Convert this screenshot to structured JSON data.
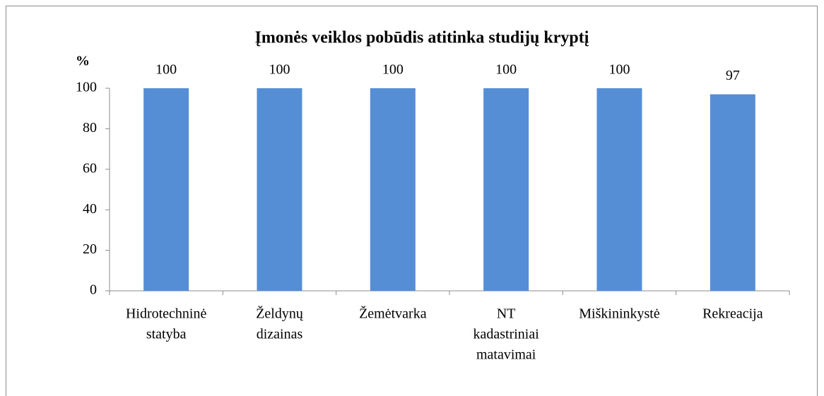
{
  "chart_data": {
    "type": "bar",
    "title": "Įmonės veiklos pobūdis atitinka  studijų kryptį",
    "y_label": "%",
    "categories": [
      [
        "Hidrotechninė",
        "statyba"
      ],
      [
        "Želdynų",
        "dizainas"
      ],
      [
        "Žemėtvarka"
      ],
      [
        "NT",
        "kadastriniai",
        "matavimai"
      ],
      [
        "Miškininkystė"
      ],
      [
        "Rekreacija"
      ]
    ],
    "values": [
      100,
      100,
      100,
      100,
      100,
      97
    ],
    "color": "#558ed5",
    "ylim": [
      0,
      100
    ],
    "yticks": [
      0,
      20,
      40,
      60,
      80,
      100
    ],
    "grid": false
  }
}
